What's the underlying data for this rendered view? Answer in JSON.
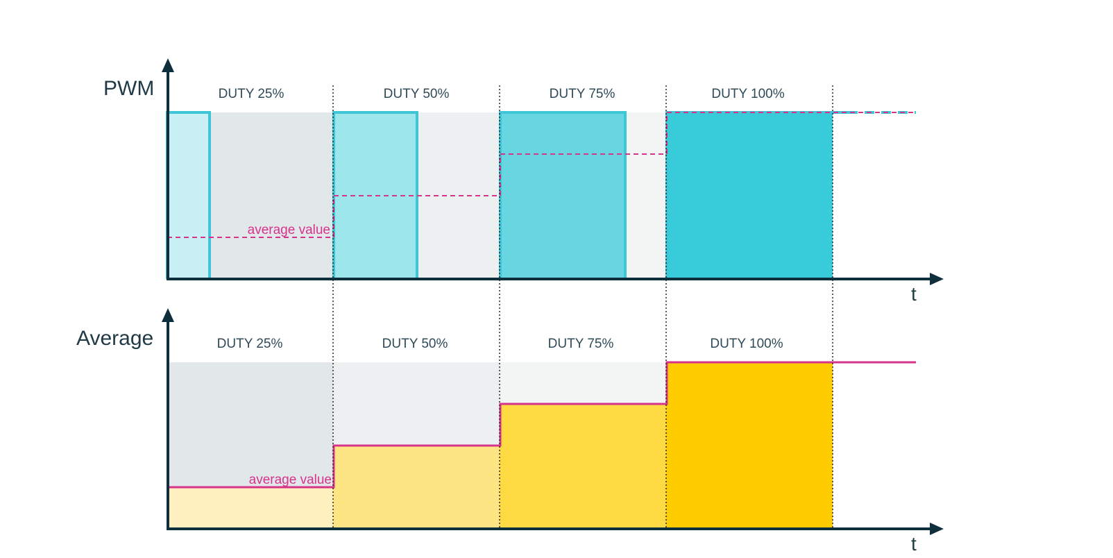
{
  "pwm_chart": {
    "y_label": "PWM",
    "x_label": "t",
    "duty_labels": [
      "DUTY 25%",
      "DUTY 50%",
      "DUTY 75%",
      "DUTY 100%"
    ],
    "average_label": "average value"
  },
  "average_chart": {
    "y_label": "Average",
    "x_label": "t",
    "duty_labels": [
      "DUTY 25%",
      "DUTY 50%",
      "DUTY 75%",
      "DUTY 100%"
    ],
    "average_label": "average value"
  },
  "duty_cycles": [
    0.25,
    0.5,
    0.75,
    1.0
  ],
  "colors": {
    "axis": "#0e2f3b",
    "pwm_outline": "#3fc6d6",
    "average_line": "#d6338b",
    "period_backgrounds": [
      "#e2e7ea",
      "#edf0f1",
      "#f3f5f5",
      "#f8f9f9"
    ],
    "pwm_fills": [
      "#c9f0f4",
      "#9ce6ec",
      "#67d6e1",
      "#38ccda"
    ],
    "average_fills": [
      "#fff1c0",
      "#fde584",
      "#fedb42",
      "#ffcc00"
    ]
  }
}
